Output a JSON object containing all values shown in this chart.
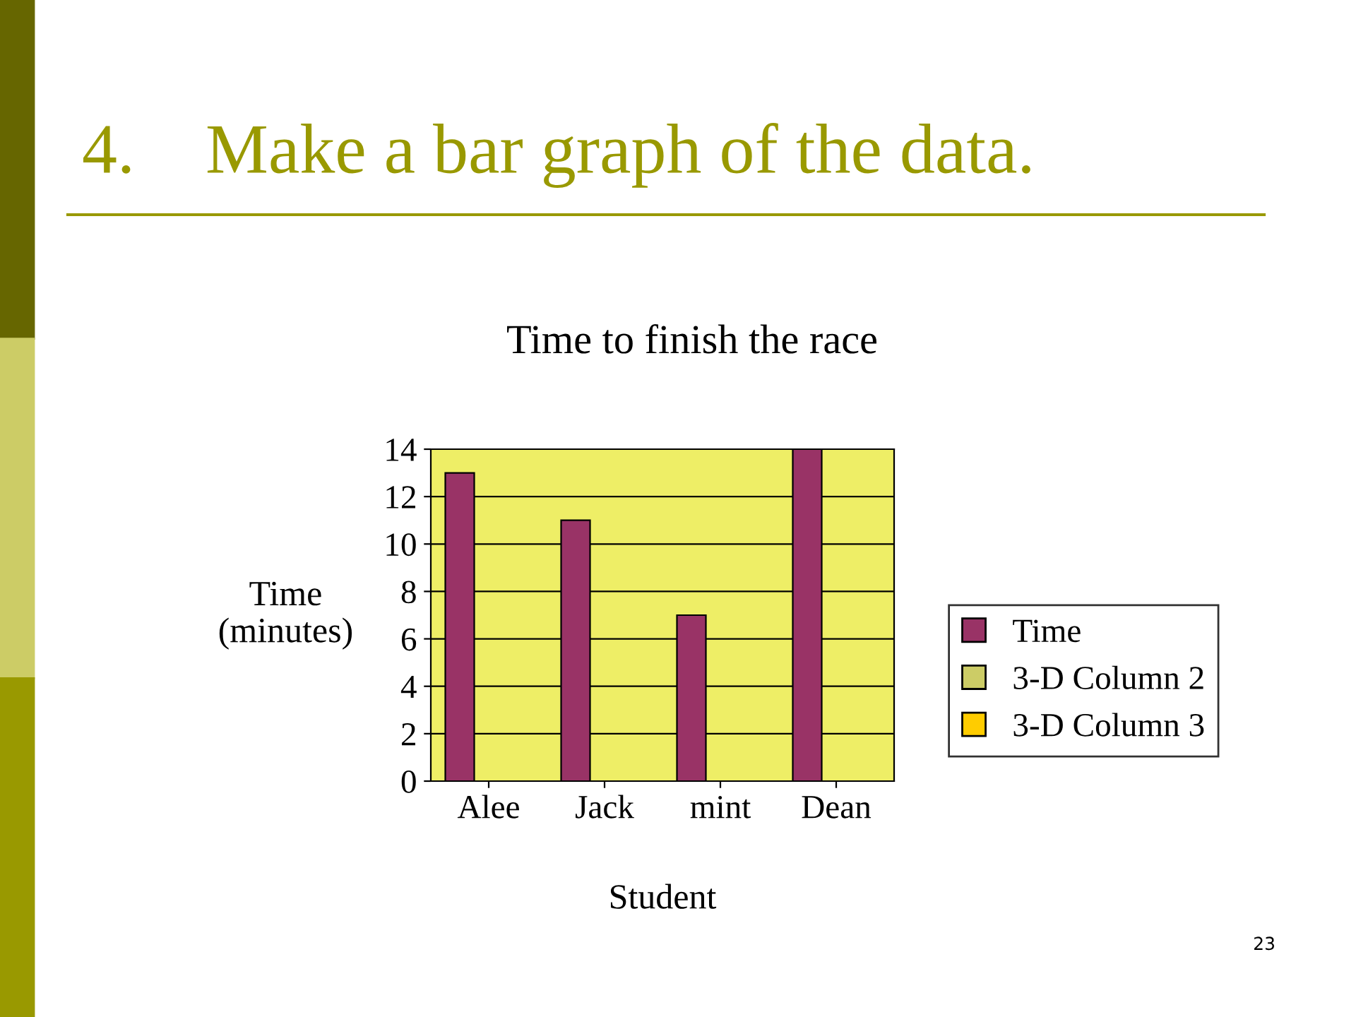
{
  "chart_data": {
    "type": "bar",
    "title": "4.    Make a bar graph of the data.",
    "subtitle": "Time to finish the race",
    "xlabel": "Student",
    "ylabel": "Time\n(minutes)",
    "categories": [
      "Alee",
      "Jack",
      "mint",
      "Dean"
    ],
    "series": [
      {
        "name": "Time",
        "color": "#993366",
        "values": [
          13,
          11,
          7,
          14
        ]
      },
      {
        "name": "3-D Column 2",
        "color": "#cccc66",
        "values": [
          null,
          null,
          null,
          null
        ]
      },
      {
        "name": "3-D Column 3",
        "color": "#ffcc00",
        "values": [
          null,
          null,
          null,
          null
        ]
      }
    ],
    "ylim": [
      0,
      14
    ],
    "yticks": [
      0,
      2,
      4,
      6,
      8,
      10,
      12,
      14
    ],
    "grid": "y",
    "legend": "right",
    "annotations": [
      "23"
    ]
  }
}
